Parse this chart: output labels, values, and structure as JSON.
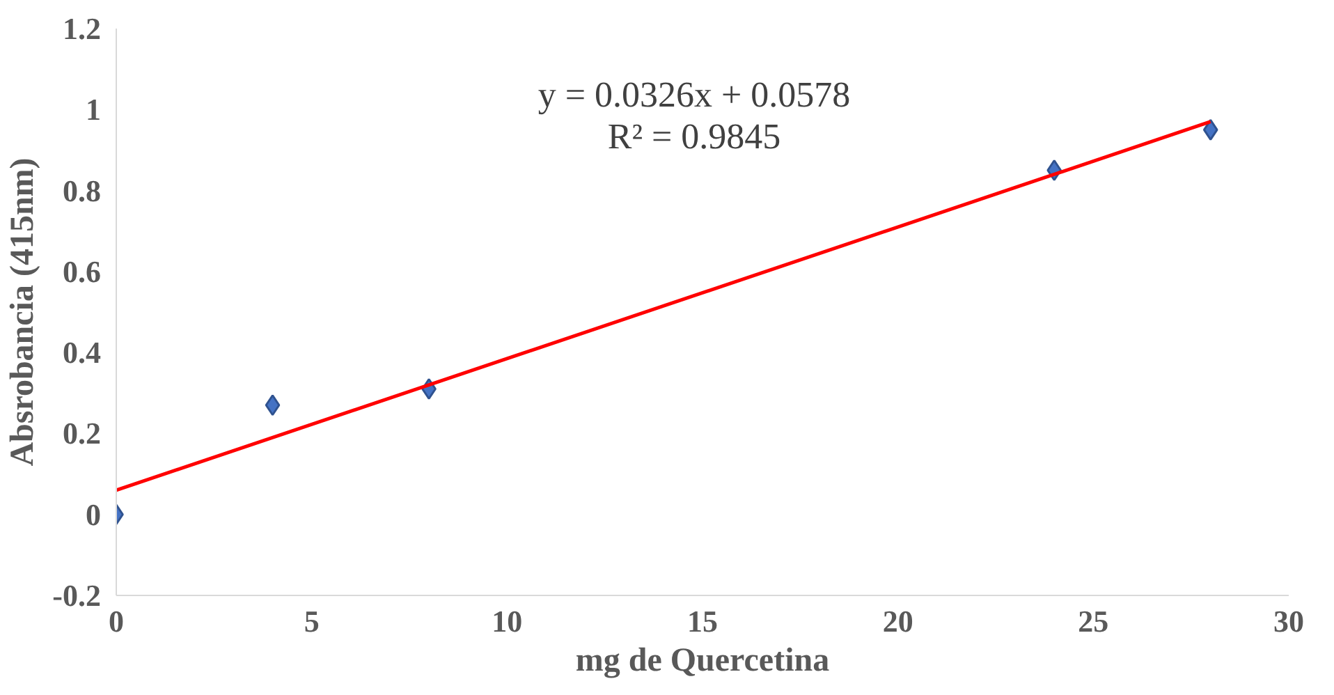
{
  "chart_data": {
    "type": "scatter",
    "xlabel": "mg de Quercetina",
    "ylabel": "Absrobancia (415nm)",
    "annotations": [
      "y = 0.0326x + 0.0578",
      "R² = 0.9845"
    ],
    "xlim": [
      0,
      30
    ],
    "ylim": [
      -0.2,
      1.2
    ],
    "xticks": [
      0,
      5,
      10,
      15,
      20,
      25,
      30
    ],
    "yticks": [
      -0.2,
      0,
      0.2,
      0.4,
      0.6,
      0.8,
      1,
      1.2
    ],
    "grid": false,
    "series": [
      {
        "color": "#4472c4",
        "marker": "diamond",
        "x": [
          0,
          4,
          8,
          24,
          28
        ],
        "values": [
          0,
          0.27,
          0.31,
          0.85,
          0.95
        ]
      },
      {
        "type": "line",
        "color": "#ff0000",
        "marker": "none",
        "x": [
          0,
          28
        ],
        "values": [
          0.06,
          0.97
        ],
        "line_style": "solid"
      }
    ]
  }
}
